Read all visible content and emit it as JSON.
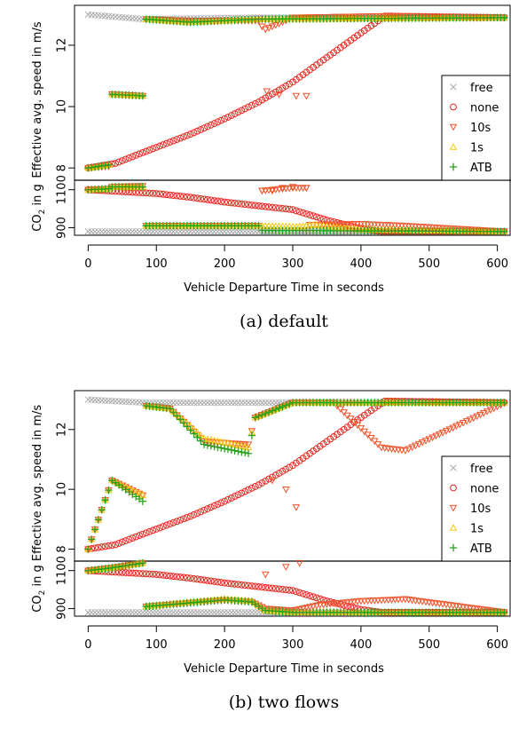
{
  "colors": {
    "free": "#aaaaaa",
    "none": "#e8271f",
    "s10": "#f0522a",
    "s1": "#f2c80f",
    "atb": "#2aa01e"
  },
  "chart_data": [
    {
      "type": "scatter",
      "caption": "(a)  default",
      "xlabel": "Vehicle Departure Time in seconds",
      "xlim": [
        -20,
        620
      ],
      "xticks": [
        0,
        100,
        200,
        300,
        400,
        500,
        600
      ],
      "panels": [
        {
          "ylabel": "Effective avg. speed in m/s",
          "ylim": [
            7.6,
            13.3
          ],
          "yticks": [
            8,
            10,
            12
          ]
        },
        {
          "ylabel_main": "CO",
          "ylabel_sub": "2",
          "ylabel_tail": " in g",
          "ylim": [
            860,
            1150
          ],
          "yticks": [
            900,
            1100
          ]
        }
      ],
      "legend": {
        "position": "right",
        "entries": [
          {
            "key": "free",
            "label": "free",
            "marker": "x"
          },
          {
            "key": "none",
            "label": "none",
            "marker": "o"
          },
          {
            "key": "s10",
            "label": "10s",
            "marker": "tri-down"
          },
          {
            "key": "s1",
            "label": "1s",
            "marker": "tri-up"
          },
          {
            "key": "atb",
            "label": "ATB",
            "marker": "plus"
          }
        ]
      },
      "series": [
        {
          "name": "free",
          "key": "free",
          "speed": [
            [
              0,
              13
            ],
            [
              80,
              12.85
            ],
            [
              250,
              12.9
            ],
            [
              612,
              12.9
            ]
          ],
          "co2": [
            [
              0,
              880
            ],
            [
              612,
              880
            ]
          ]
        },
        {
          "name": "none",
          "key": "none",
          "speed": [
            [
              0,
              8
            ],
            [
              40,
              8.15
            ],
            [
              80,
              8.5
            ],
            [
              150,
              9.1
            ],
            [
              200,
              9.6
            ],
            [
              250,
              10.15
            ],
            [
              300,
              10.8
            ],
            [
              350,
              11.6
            ],
            [
              400,
              12.4
            ],
            [
              435,
              12.95
            ],
            [
              612,
              12.9
            ]
          ],
          "co2": [
            [
              0,
              1100
            ],
            [
              100,
              1080
            ],
            [
              150,
              1060
            ],
            [
              200,
              1035
            ],
            [
              250,
              1015
            ],
            [
              300,
              995
            ],
            [
              350,
              940
            ],
            [
              400,
              895
            ],
            [
              430,
              880
            ],
            [
              612,
              880
            ]
          ]
        },
        {
          "name": "10s",
          "key": "s10",
          "speed": [
            [
              0,
              8
            ],
            [
              30,
              8.05
            ],
            [
              35,
              10.4
            ],
            [
              80,
              10.35
            ],
            [
              82,
              12.85
            ],
            [
              150,
              12.8
            ],
            [
              250,
              12.8
            ],
            [
              258,
              12.5
            ],
            [
              300,
              12.9
            ],
            [
              430,
              12.95
            ],
            [
              612,
              12.9
            ]
          ],
          "co2": [
            [
              0,
              1100
            ],
            [
              30,
              1105
            ],
            [
              35,
              1115
            ],
            [
              80,
              1120
            ],
            [
              82,
              910
            ],
            [
              250,
              910
            ],
            [
              255,
              1095
            ],
            [
              300,
              1110
            ],
            [
              320,
              1110
            ],
            [
              325,
              915
            ],
            [
              400,
              920
            ],
            [
              465,
              910
            ],
            [
              612,
              880
            ]
          ],
          "extra_speed": [
            [
              262,
              10.5
            ],
            [
              280,
              10.4
            ],
            [
              305,
              10.35
            ],
            [
              320,
              10.35
            ]
          ],
          "extra_co2": [
            [
              255,
              1095
            ],
            [
              270,
              1095
            ],
            [
              285,
              1110
            ],
            [
              300,
              1115
            ],
            [
              320,
              1110
            ]
          ]
        },
        {
          "name": "1s",
          "key": "s1",
          "speed": [
            [
              0,
              8
            ],
            [
              30,
              8.1
            ],
            [
              35,
              10.4
            ],
            [
              80,
              10.35
            ],
            [
              82,
              12.85
            ],
            [
              150,
              12.75
            ],
            [
              250,
              12.85
            ],
            [
              612,
              12.9
            ]
          ],
          "co2": [
            [
              0,
              1100
            ],
            [
              30,
              1105
            ],
            [
              35,
              1115
            ],
            [
              80,
              1115
            ],
            [
              82,
              910
            ],
            [
              250,
              910
            ],
            [
              305,
              905
            ],
            [
              330,
              915
            ],
            [
              400,
              890
            ],
            [
              612,
              880
            ]
          ]
        },
        {
          "name": "ATB",
          "key": "atb",
          "speed": [
            [
              0,
              8
            ],
            [
              30,
              8.1
            ],
            [
              35,
              10.4
            ],
            [
              80,
              10.35
            ],
            [
              82,
              12.85
            ],
            [
              150,
              12.75
            ],
            [
              250,
              12.85
            ],
            [
              612,
              12.9
            ]
          ],
          "co2": [
            [
              0,
              1100
            ],
            [
              30,
              1105
            ],
            [
              35,
              1115
            ],
            [
              80,
              1115
            ],
            [
              82,
              910
            ],
            [
              250,
              910
            ],
            [
              255,
              885
            ],
            [
              612,
              880
            ]
          ]
        }
      ]
    },
    {
      "type": "scatter",
      "caption": "(b)  two flows",
      "xlabel": "Vehicle Departure Time in seconds",
      "xlim": [
        -20,
        620
      ],
      "xticks": [
        0,
        100,
        200,
        300,
        400,
        500,
        600
      ],
      "panels": [
        {
          "ylabel": "Effective avg. speed in m/s",
          "ylim": [
            7.6,
            13.3
          ],
          "yticks": [
            8,
            10,
            12
          ]
        },
        {
          "ylabel_main": "CO",
          "ylabel_sub": "2",
          "ylabel_tail": " in g",
          "ylim": [
            860,
            1150
          ],
          "yticks": [
            900,
            1100
          ]
        }
      ],
      "legend": {
        "position": "right",
        "entries": [
          {
            "key": "free",
            "label": "free",
            "marker": "x"
          },
          {
            "key": "none",
            "label": "none",
            "marker": "o"
          },
          {
            "key": "s10",
            "label": "10s",
            "marker": "tri-down"
          },
          {
            "key": "s1",
            "label": "1s",
            "marker": "tri-up"
          },
          {
            "key": "atb",
            "label": "ATB",
            "marker": "plus"
          }
        ]
      },
      "series": [
        {
          "name": "free",
          "key": "free",
          "speed": [
            [
              0,
              13
            ],
            [
              80,
              12.9
            ],
            [
              612,
              12.9
            ]
          ],
          "co2": [
            [
              0,
              880
            ],
            [
              612,
              880
            ]
          ]
        },
        {
          "name": "none",
          "key": "none",
          "speed": [
            [
              0,
              8
            ],
            [
              40,
              8.15
            ],
            [
              80,
              8.5
            ],
            [
              150,
              9.1
            ],
            [
              200,
              9.6
            ],
            [
              250,
              10.15
            ],
            [
              300,
              10.8
            ],
            [
              350,
              11.6
            ],
            [
              400,
              12.4
            ],
            [
              435,
              12.95
            ],
            [
              612,
              12.9
            ]
          ],
          "co2": [
            [
              0,
              1100
            ],
            [
              100,
              1080
            ],
            [
              150,
              1060
            ],
            [
              200,
              1035
            ],
            [
              250,
              1015
            ],
            [
              300,
              995
            ],
            [
              350,
              940
            ],
            [
              400,
              895
            ],
            [
              430,
              880
            ],
            [
              612,
              880
            ]
          ]
        },
        {
          "name": "10s",
          "key": "s10",
          "speed": [
            [
              0,
              8
            ],
            [
              35,
              10.3
            ],
            [
              80,
              9.8
            ],
            [
              82,
              12.8
            ],
            [
              120,
              12.7
            ],
            [
              170,
              11.6
            ],
            [
              235,
              11.5
            ],
            [
              245,
              12.4
            ],
            [
              300,
              12.9
            ],
            [
              360,
              12.9
            ],
            [
              430,
              11.4
            ],
            [
              465,
              11.3
            ],
            [
              612,
              12.9
            ]
          ],
          "co2": [
            [
              0,
              1100
            ],
            [
              35,
              1115
            ],
            [
              80,
              1140
            ],
            [
              82,
              910
            ],
            [
              150,
              930
            ],
            [
              200,
              945
            ],
            [
              240,
              935
            ],
            [
              260,
              900
            ],
            [
              300,
              890
            ],
            [
              340,
              920
            ],
            [
              400,
              940
            ],
            [
              465,
              950
            ],
            [
              612,
              880
            ]
          ],
          "extra_speed": [
            [
              270,
              10.3
            ],
            [
              290,
              10
            ],
            [
              305,
              9.4
            ]
          ],
          "extra_co2": [
            [
              260,
              1080
            ],
            [
              290,
              1120
            ],
            [
              310,
              1140
            ]
          ]
        },
        {
          "name": "1s",
          "key": "s1",
          "speed": [
            [
              0,
              8
            ],
            [
              35,
              10.3
            ],
            [
              80,
              9.8
            ],
            [
              82,
              12.8
            ],
            [
              120,
              12.7
            ],
            [
              170,
              11.7
            ],
            [
              235,
              11.4
            ],
            [
              245,
              12.4
            ],
            [
              300,
              12.9
            ],
            [
              612,
              12.9
            ]
          ],
          "co2": [
            [
              0,
              1100
            ],
            [
              35,
              1115
            ],
            [
              80,
              1140
            ],
            [
              82,
              910
            ],
            [
              150,
              935
            ],
            [
              200,
              950
            ],
            [
              240,
              940
            ],
            [
              260,
              890
            ],
            [
              300,
              880
            ],
            [
              612,
              880
            ]
          ]
        },
        {
          "name": "ATB",
          "key": "atb",
          "speed": [
            [
              0,
              8
            ],
            [
              35,
              10.3
            ],
            [
              80,
              9.6
            ],
            [
              82,
              12.8
            ],
            [
              120,
              12.7
            ],
            [
              170,
              11.5
            ],
            [
              235,
              11.2
            ],
            [
              245,
              12.4
            ],
            [
              300,
              12.9
            ],
            [
              612,
              12.9
            ]
          ],
          "co2": [
            [
              0,
              1100
            ],
            [
              35,
              1115
            ],
            [
              80,
              1140
            ],
            [
              82,
              910
            ],
            [
              150,
              930
            ],
            [
              200,
              945
            ],
            [
              240,
              935
            ],
            [
              260,
              890
            ],
            [
              300,
              880
            ],
            [
              612,
              880
            ]
          ]
        }
      ]
    }
  ]
}
